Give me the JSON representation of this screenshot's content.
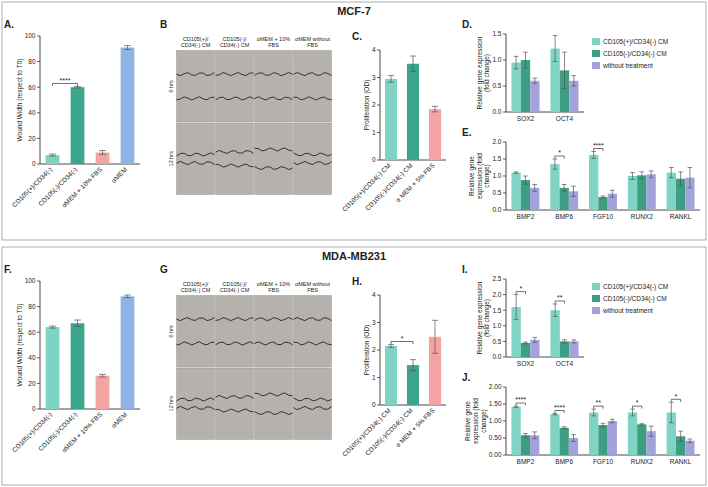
{
  "sections": [
    "MCF-7",
    "MDA-MB231"
  ],
  "images": [
    {
      "panel_label": "B",
      "columns": [
        "CD105(+)/CD34(-) CM",
        "CD105(-)/CD34(-) CM",
        "αMEM + 10% FBS",
        "αMEM without FBS"
      ],
      "rows": [
        "0 hrs",
        "12 hrs"
      ]
    },
    {
      "panel_label": "G",
      "columns": [
        "CD105(+)/CD34(-) CM",
        "CD105(-)/CD34(-) CM",
        "αMEM + 10% FBS",
        "αMEM without FBS"
      ],
      "rows": [
        "0 hrs",
        "12 hrs"
      ]
    }
  ],
  "chart_data": [
    {
      "type": "bar",
      "panel_label": "A.",
      "y_label": "Wound Width (respect to T0)",
      "categories": [
        "CD105(+)/CD34(-)",
        "CD105(-)/CD34(-)",
        "αMEM + 10% FBS",
        "αMEM"
      ],
      "values": [
        7,
        60,
        9,
        91
      ],
      "errors": [
        0.8,
        0.6,
        1.5,
        1.5
      ],
      "colors": [
        "#7fd3c3",
        "#3ba68c",
        "#f4a3a3",
        "#8cb3e2"
      ],
      "ylim": [
        0,
        100
      ],
      "yticks": [
        0,
        20,
        40,
        60,
        80,
        100
      ],
      "grid": false,
      "annotations": [
        {
          "text": "****",
          "between": [
            "CD105(+)/CD34(-)",
            "CD105(-)/CD34(-)"
          ]
        }
      ]
    },
    {
      "type": "bar",
      "panel_label": "C.",
      "y_label": "Proliferation (OD)",
      "categories": [
        "CD105(+)/CD34(-) CM",
        "CD105(-)/CD34(-) CM",
        "α MEM + 5% FBS"
      ],
      "values": [
        2.95,
        3.5,
        1.85
      ],
      "errors": [
        0.12,
        0.28,
        0.1
      ],
      "colors": [
        "#7fd3c3",
        "#3ba68c",
        "#f4a3a3"
      ],
      "ylim": [
        0,
        4
      ],
      "yticks": [
        0,
        1,
        2,
        3,
        4
      ],
      "grid": false
    },
    {
      "type": "bar",
      "panel_label": "D.",
      "y_label": "Relative gene expression (fold change)",
      "categories": [
        "SOX2",
        "OCT4"
      ],
      "series": [
        {
          "name": "CD105(+)/CD34(-) CM",
          "color": "#80d4c4",
          "values": [
            0.95,
            1.22
          ],
          "errors": [
            0.12,
            0.25
          ]
        },
        {
          "name": "CD105(-)/CD34(-) CM",
          "color": "#3d9e84",
          "values": [
            1.0,
            0.8
          ],
          "errors": [
            0.15,
            0.35
          ]
        },
        {
          "name": "without treatment",
          "color": "#a3a3dc",
          "values": [
            0.6,
            0.6
          ],
          "errors": [
            0.05,
            0.1
          ]
        }
      ],
      "ylim": [
        0,
        1.5
      ],
      "yticks": [
        {
          "value": 0,
          "label": "0.0"
        },
        0.5,
        {
          "value": 1,
          "label": "1.0"
        },
        1.5
      ],
      "grid": false,
      "legend": "right"
    },
    {
      "type": "bar",
      "panel_label": "E.",
      "y_label": "Relative gene expression (fold change)",
      "categories": [
        "BMP2",
        "BMP6",
        "FGF10",
        "RUNX2",
        "RANKL"
      ],
      "series": [
        {
          "name": "CD105(+)/CD34(-) CM",
          "color": "#80d4c4",
          "values": [
            1.1,
            1.35,
            1.62,
            1.0,
            1.1
          ],
          "errors": [
            0.02,
            0.15,
            0.1,
            0.1,
            0.15
          ]
        },
        {
          "name": "CD105(-)/CD34(-) CM",
          "color": "#3d9e84",
          "values": [
            0.88,
            0.65,
            0.38,
            1.02,
            0.92
          ],
          "errors": [
            0.12,
            0.1,
            0.03,
            0.1,
            0.2
          ]
        },
        {
          "name": "without treatment",
          "color": "#a3a3dc",
          "values": [
            0.65,
            0.55,
            0.48,
            1.05,
            0.95
          ],
          "errors": [
            0.1,
            0.15,
            0.1,
            0.1,
            0.3
          ]
        }
      ],
      "ylim": [
        0,
        2
      ],
      "yticks": [
        {
          "value": 0,
          "label": "0.0"
        },
        0.5,
        {
          "value": 1,
          "label": "1.0"
        },
        1.5,
        {
          "value": 2,
          "label": "2.0"
        }
      ],
      "grid": false,
      "legend": "none",
      "annotations": [
        {
          "text": "*",
          "category": "BMP6"
        },
        {
          "text": "****",
          "category": "FGF10"
        }
      ]
    },
    {
      "type": "bar",
      "panel_label": "F.",
      "y_label": "Wound Width (respect to T0)",
      "categories": [
        "CD105(+)/CD34(-)",
        "CD105(-)/CD34(-)",
        "αMEM + 10% FBS",
        "αMEM"
      ],
      "values": [
        64,
        67,
        26,
        88
      ],
      "errors": [
        0.8,
        2.5,
        1,
        1
      ],
      "colors": [
        "#7fd3c3",
        "#3ba68c",
        "#f4a3a3",
        "#8cb3e2"
      ],
      "ylim": [
        0,
        100
      ],
      "yticks": [
        0,
        20,
        40,
        60,
        80,
        100
      ],
      "grid": false
    },
    {
      "type": "bar",
      "panel_label": "H.",
      "y_label": "Proliferation (OD)",
      "categories": [
        "CD105(+)/CD34(-) CM",
        "CD105(-)/CD34(-) CM",
        "α MEM + 5% FBS"
      ],
      "values": [
        2.15,
        1.45,
        2.48
      ],
      "errors": [
        0.05,
        0.2,
        0.6
      ],
      "colors": [
        "#7fd3c3",
        "#3ba68c",
        "#f4a3a3"
      ],
      "ylim": [
        0,
        4
      ],
      "yticks": [
        0,
        1,
        2,
        3,
        4
      ],
      "grid": false,
      "annotations": [
        {
          "text": "*",
          "between": [
            "CD105(+)/CD34(-) CM",
            "CD105(-)/CD34(-) CM"
          ]
        }
      ]
    },
    {
      "type": "bar",
      "panel_label": "I.",
      "y_label": "Relative gene expression (fold change)",
      "categories": [
        "SOX2",
        "OCT4"
      ],
      "series": [
        {
          "name": "CD105(+)/CD34(-) CM",
          "color": "#80d4c4",
          "values": [
            1.6,
            1.5
          ],
          "errors": [
            0.4,
            0.2
          ]
        },
        {
          "name": "CD105(-)/CD34(-) CM",
          "color": "#3d9e84",
          "values": [
            0.45,
            0.5
          ],
          "errors": [
            0.03,
            0.05
          ]
        },
        {
          "name": "without treatment",
          "color": "#a3a3dc",
          "values": [
            0.55,
            0.5
          ],
          "errors": [
            0.08,
            0.05
          ]
        }
      ],
      "ylim": [
        0,
        2.5
      ],
      "yticks": [
        {
          "value": 0,
          "label": "0.0"
        },
        0.5,
        {
          "value": 1,
          "label": "1.0"
        },
        1.5,
        {
          "value": 2,
          "label": "2.0"
        },
        2.5
      ],
      "grid": false,
      "legend": "right",
      "annotations": [
        {
          "text": "*",
          "category": "SOX2"
        },
        {
          "text": "**",
          "category": "OCT4"
        }
      ]
    },
    {
      "type": "bar",
      "panel_label": "J.",
      "y_label": "Relative gene expression (fold change)",
      "categories": [
        "BMP2",
        "BMP6",
        "FGF10",
        "RUNX2",
        "RANKL"
      ],
      "series": [
        {
          "name": "CD105(+)/CD34(-) CM",
          "color": "#80d4c4",
          "values": [
            1.42,
            1.2,
            1.25,
            1.25,
            1.25
          ],
          "errors": [
            0.02,
            0.02,
            0.1,
            0.1,
            0.3
          ]
        },
        {
          "name": "CD105(-)/CD34(-) CM",
          "color": "#3d9e84",
          "values": [
            0.58,
            0.8,
            0.88,
            0.9,
            0.55
          ],
          "errors": [
            0.05,
            0.03,
            0.05,
            0.02,
            0.15
          ]
        },
        {
          "name": "without treatment",
          "color": "#a3a3dc",
          "values": [
            0.58,
            0.5,
            1.0,
            0.7,
            0.42
          ],
          "errors": [
            0.1,
            0.1,
            0.05,
            0.15,
            0.05
          ]
        }
      ],
      "ylim": [
        0,
        2
      ],
      "yticks": [
        {
          "value": 0,
          "label": "0.00"
        },
        {
          "value": 0.5,
          "label": "0.50"
        },
        {
          "value": 1,
          "label": "1.00"
        },
        {
          "value": 1.5,
          "label": "1.50"
        },
        {
          "value": 2,
          "label": "2.00"
        }
      ],
      "grid": false,
      "legend": "none",
      "annotations": [
        {
          "text": "****",
          "category": "BMP2"
        },
        {
          "text": "****",
          "category": "BMP6"
        },
        {
          "text": "**",
          "category": "FGF10"
        },
        {
          "text": "*",
          "category": "RUNX2"
        },
        {
          "text": "*",
          "category": "RANKL"
        }
      ]
    }
  ]
}
